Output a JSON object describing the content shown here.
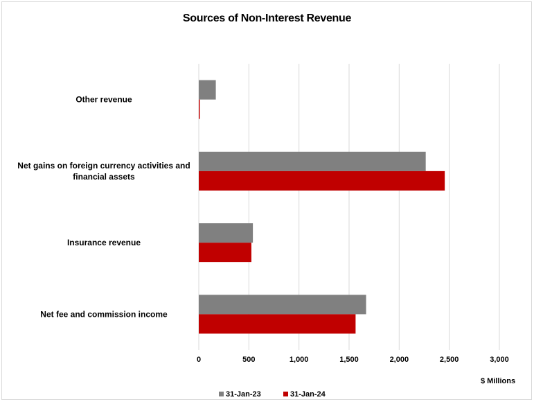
{
  "chart_data": {
    "type": "bar",
    "orientation": "horizontal",
    "title": "Sources of Non-Interest Revenue",
    "categories": [
      "Other revenue",
      "Net gains on foreign currency activities and financial assets",
      "Insurance revenue",
      "Net fee and commission income"
    ],
    "series": [
      {
        "name": "31-Jan-23",
        "color": "#808080",
        "values": [
          170,
          2265,
          540,
          1670
        ]
      },
      {
        "name": "31-Jan-24",
        "color": "#c00000",
        "values": [
          10,
          2455,
          525,
          1565
        ]
      }
    ],
    "xlim": [
      0,
      3000
    ],
    "xticks": [
      "0",
      "500",
      "1,000",
      "1,500",
      "2,000",
      "2,500",
      "3,000"
    ],
    "xtick_values": [
      0,
      500,
      1000,
      1500,
      2000,
      2500,
      3000
    ],
    "unit_label": "$ Millions",
    "grid": "vertical",
    "legend_position": "bottom"
  }
}
